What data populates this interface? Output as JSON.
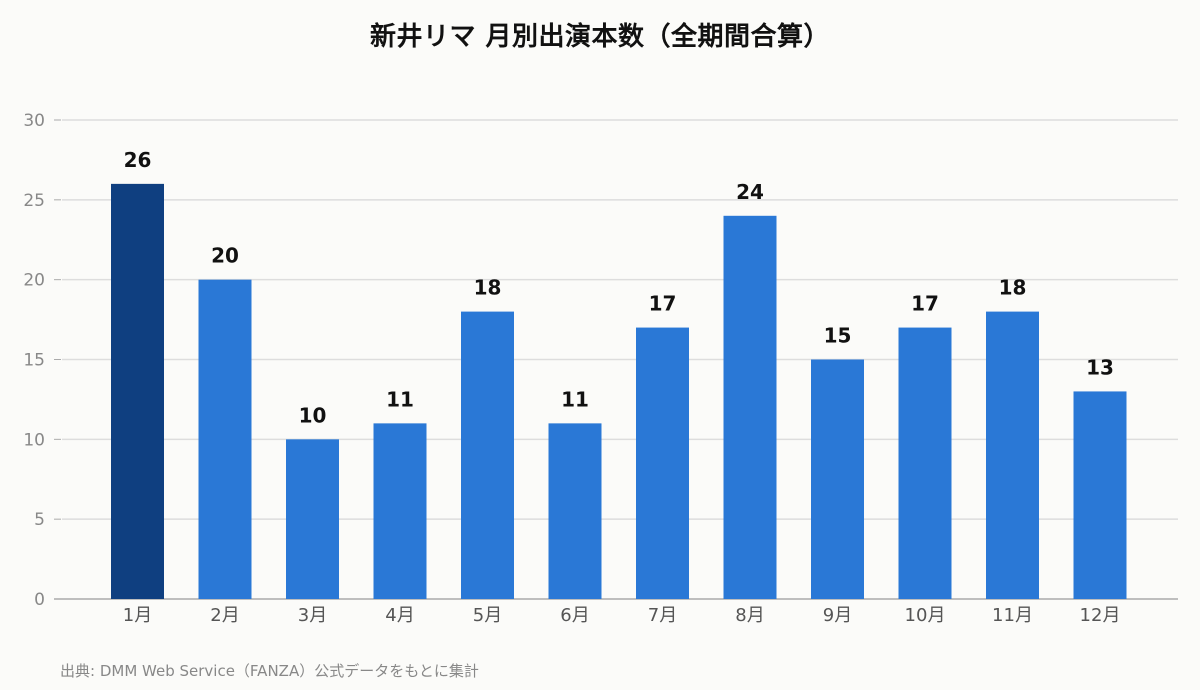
{
  "chart_data": {
    "type": "bar",
    "title": "新井リマ 月別出演本数（全期間合算）",
    "categories": [
      "1月",
      "2月",
      "3月",
      "4月",
      "5月",
      "6月",
      "7月",
      "8月",
      "9月",
      "10月",
      "11月",
      "12月"
    ],
    "values": [
      26,
      20,
      10,
      11,
      18,
      11,
      17,
      24,
      15,
      17,
      18,
      13
    ],
    "ylim": [
      0,
      30
    ],
    "yticks": [
      0,
      5,
      10,
      15,
      20,
      25,
      30
    ],
    "xlabel": "",
    "ylabel": "",
    "grid": true,
    "highlight_index": 0,
    "colors": {
      "bar": "#2a78d6",
      "highlight": "#0f3f80",
      "grid": "#dddddd",
      "axis": "#aaaaaa",
      "tick_label": "#888888",
      "value_label": "#111111"
    }
  },
  "source": "出典: DMM Web Service（FANZA）公式データをもとに集計"
}
